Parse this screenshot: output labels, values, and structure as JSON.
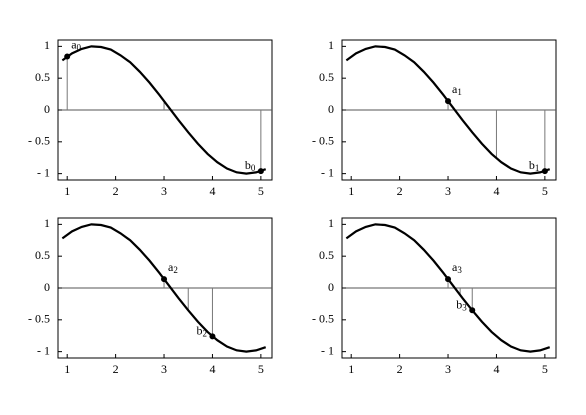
{
  "chart_data": [
    {
      "type": "line",
      "x": [
        0.9,
        1.1,
        1.3,
        1.5,
        1.7,
        1.9,
        2.1,
        2.3,
        2.5,
        2.7,
        2.9,
        3.1,
        3.3,
        3.5,
        3.7,
        3.9,
        4.1,
        4.3,
        4.5,
        4.7,
        4.9,
        5.1
      ],
      "values": [
        0.78,
        0.89,
        0.96,
        1.0,
        0.99,
        0.95,
        0.86,
        0.75,
        0.6,
        0.43,
        0.24,
        0.04,
        -0.16,
        -0.35,
        -0.53,
        -0.69,
        -0.82,
        -0.92,
        -0.98,
        -1.0,
        -0.98,
        -0.93
      ],
      "color": "#000000",
      "stems": {
        "x": [
          1,
          3,
          5
        ],
        "values": [
          0.84,
          0.14,
          -0.96
        ]
      },
      "points": {
        "x": [
          1,
          5
        ],
        "values": [
          0.84,
          -0.96
        ],
        "labels": [
          "a0",
          "b0"
        ]
      },
      "xlim": [
        0.81,
        5.23
      ],
      "ylim": [
        -1.1,
        1.1
      ],
      "xticks": [
        1,
        2,
        3,
        4,
        5
      ],
      "yticks": [
        {
          "value": -1,
          "label": "- 1"
        },
        {
          "value": -0.5,
          "label": "- 0.5"
        },
        0,
        0.5,
        1
      ]
    },
    {
      "type": "line",
      "x": [
        0.9,
        1.1,
        1.3,
        1.5,
        1.7,
        1.9,
        2.1,
        2.3,
        2.5,
        2.7,
        2.9,
        3.1,
        3.3,
        3.5,
        3.7,
        3.9,
        4.1,
        4.3,
        4.5,
        4.7,
        4.9,
        5.1
      ],
      "values": [
        0.78,
        0.89,
        0.96,
        1.0,
        0.99,
        0.95,
        0.86,
        0.75,
        0.6,
        0.43,
        0.24,
        0.04,
        -0.16,
        -0.35,
        -0.53,
        -0.69,
        -0.82,
        -0.92,
        -0.98,
        -1.0,
        -0.98,
        -0.93
      ],
      "color": "#000000",
      "stems": {
        "x": [
          3,
          4,
          5
        ],
        "values": [
          0.14,
          -0.76,
          -0.96
        ]
      },
      "points": {
        "x": [
          3,
          5
        ],
        "values": [
          0.14,
          -0.96
        ],
        "labels": [
          "a1",
          "b1"
        ]
      },
      "xlim": [
        0.81,
        5.23
      ],
      "ylim": [
        -1.1,
        1.1
      ],
      "xticks": [
        1,
        2,
        3,
        4,
        5
      ],
      "yticks": [
        {
          "value": -1,
          "label": "- 1"
        },
        {
          "value": -0.5,
          "label": "- 0.5"
        },
        0,
        0.5,
        1
      ]
    },
    {
      "type": "line",
      "x": [
        0.9,
        1.1,
        1.3,
        1.5,
        1.7,
        1.9,
        2.1,
        2.3,
        2.5,
        2.7,
        2.9,
        3.1,
        3.3,
        3.5,
        3.7,
        3.9,
        4.1,
        4.3,
        4.5,
        4.7,
        4.9,
        5.1
      ],
      "values": [
        0.78,
        0.89,
        0.96,
        1.0,
        0.99,
        0.95,
        0.86,
        0.75,
        0.6,
        0.43,
        0.24,
        0.04,
        -0.16,
        -0.35,
        -0.53,
        -0.69,
        -0.82,
        -0.92,
        -0.98,
        -1.0,
        -0.98,
        -0.93
      ],
      "color": "#000000",
      "stems": {
        "x": [
          3,
          3.5,
          4
        ],
        "values": [
          0.14,
          -0.35,
          -0.76
        ]
      },
      "points": {
        "x": [
          3,
          4
        ],
        "values": [
          0.14,
          -0.76
        ],
        "labels": [
          "a2",
          "b2"
        ]
      },
      "xlim": [
        0.81,
        5.23
      ],
      "ylim": [
        -1.1,
        1.1
      ],
      "xticks": [
        1,
        2,
        3,
        4,
        5
      ],
      "yticks": [
        {
          "value": -1,
          "label": "- 1"
        },
        {
          "value": -0.5,
          "label": "- 0.5"
        },
        0,
        0.5,
        1
      ]
    },
    {
      "type": "line",
      "x": [
        0.9,
        1.1,
        1.3,
        1.5,
        1.7,
        1.9,
        2.1,
        2.3,
        2.5,
        2.7,
        2.9,
        3.1,
        3.3,
        3.5,
        3.7,
        3.9,
        4.1,
        4.3,
        4.5,
        4.7,
        4.9,
        5.1
      ],
      "values": [
        0.78,
        0.89,
        0.96,
        1.0,
        0.99,
        0.95,
        0.86,
        0.75,
        0.6,
        0.43,
        0.24,
        0.04,
        -0.16,
        -0.35,
        -0.53,
        -0.69,
        -0.82,
        -0.92,
        -0.98,
        -1.0,
        -0.98,
        -0.93
      ],
      "color": "#000000",
      "stems": {
        "x": [
          3,
          3.25,
          3.5
        ],
        "values": [
          0.14,
          -0.11,
          -0.35
        ]
      },
      "points": {
        "x": [
          3,
          3.5
        ],
        "values": [
          0.14,
          -0.35
        ],
        "labels": [
          "a3",
          "b3"
        ]
      },
      "xlim": [
        0.81,
        5.23
      ],
      "ylim": [
        -1.1,
        1.1
      ],
      "xticks": [
        1,
        2,
        3,
        4,
        5
      ],
      "yticks": [
        {
          "value": -1,
          "label": "- 1"
        },
        {
          "value": -0.5,
          "label": "- 0.5"
        },
        0,
        0.5,
        1
      ]
    }
  ]
}
